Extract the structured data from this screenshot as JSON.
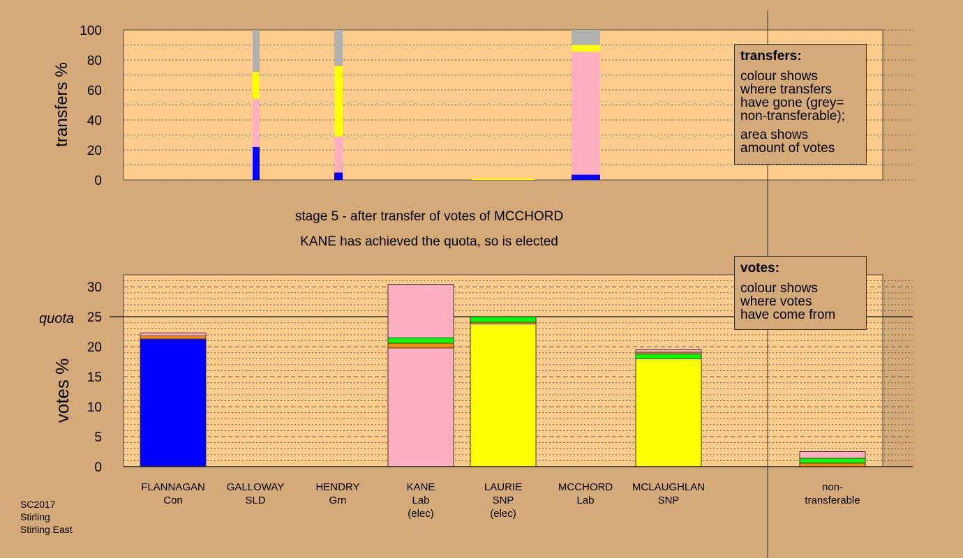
{
  "caption": {
    "stage": "stage 5 - after transfer of votes of MCCHORD",
    "result": "KANE has achieved the quota, so is elected"
  },
  "legend_transfers": {
    "title": "transfers:",
    "line1": "colour shows",
    "line2": "where transfers",
    "line3": "have gone (grey=",
    "line4": "non-transferable);",
    "line5": "area shows",
    "line6": "amount of votes"
  },
  "legend_votes": {
    "title": "votes:",
    "line1": "colour shows",
    "line2": "where votes",
    "line3": "have come from"
  },
  "footer": {
    "line1": "SC2017",
    "line2": "Stirling",
    "line3": "Stirling East"
  },
  "colors": {
    "background": "#d4aa78",
    "plot": "#ffcc8c",
    "Con": "#0000ff",
    "Lab": "#ffb0c0",
    "SNP": "#ffff00",
    "Grn": "#00ff00",
    "SLD": "#ff8c00",
    "nontransferable": "#b0b0b0"
  },
  "chart_data": [
    {
      "type": "bar",
      "ylabel": "transfers %",
      "ylim": [
        0,
        100
      ],
      "yticks": [
        0,
        20,
        40,
        60,
        80,
        100
      ],
      "grid": true,
      "bars": [
        {
          "candidate": "GALLOWAY",
          "segments": [
            {
              "color": "Con",
              "value": 22
            },
            {
              "color": "Lab",
              "value": 32
            },
            {
              "color": "SNP",
              "value": 18
            },
            {
              "color": "nontransferable",
              "value": 28
            }
          ]
        },
        {
          "candidate": "HENDRY",
          "segments": [
            {
              "color": "Con",
              "value": 5
            },
            {
              "color": "Lab",
              "value": 24
            },
            {
              "color": "SNP",
              "value": 47
            },
            {
              "color": "nontransferable",
              "value": 24
            }
          ]
        },
        {
          "candidate": "LAURIE",
          "segments": [
            {
              "color": "SNP",
              "value": 1
            }
          ]
        },
        {
          "candidate": "MCCHORD",
          "segments": [
            {
              "color": "Con",
              "value": 3.5
            },
            {
              "color": "Lab",
              "value": 82
            },
            {
              "color": "SNP",
              "value": 4.5
            },
            {
              "color": "nontransferable",
              "value": 10
            }
          ]
        }
      ]
    },
    {
      "type": "bar",
      "ylabel": "votes %",
      "quota_label": "quota",
      "quota": 25,
      "ylim": [
        0,
        32
      ],
      "yticks": [
        0,
        5,
        10,
        15,
        20,
        25,
        30
      ],
      "grid": true,
      "categories": [
        {
          "name": "FLANNAGAN",
          "party": "Con",
          "note": ""
        },
        {
          "name": "GALLOWAY",
          "party": "SLD",
          "note": ""
        },
        {
          "name": "HENDRY",
          "party": "Grn",
          "note": ""
        },
        {
          "name": "KANE",
          "party": "Lab",
          "note": "(elec)"
        },
        {
          "name": "LAURIE",
          "party": "SNP",
          "note": "(elec)"
        },
        {
          "name": "MCCHORD",
          "party": "Lab",
          "note": ""
        },
        {
          "name": "MCLAUGHLAN",
          "party": "SNP",
          "note": ""
        },
        {
          "name": "non-",
          "party": "transferable",
          "note": ""
        }
      ],
      "bars": [
        {
          "candidate": "FLANNAGAN",
          "segments": [
            {
              "color": "Con",
              "value": 21.3
            },
            {
              "color": "SLD",
              "value": 0.5
            },
            {
              "color": "Lab",
              "value": 0.5
            }
          ]
        },
        {
          "candidate": "GALLOWAY",
          "segments": []
        },
        {
          "candidate": "HENDRY",
          "segments": []
        },
        {
          "candidate": "KANE",
          "segments": [
            {
              "color": "Lab",
              "value": 19.8
            },
            {
              "color": "SLD",
              "value": 0.8
            },
            {
              "color": "Grn",
              "value": 0.9
            },
            {
              "color": "Lab",
              "value": 8.9
            }
          ]
        },
        {
          "candidate": "LAURIE",
          "segments": [
            {
              "color": "SNP",
              "value": 23.8
            },
            {
              "color": "SLD",
              "value": 0.3
            },
            {
              "color": "Grn",
              "value": 0.9
            }
          ]
        },
        {
          "candidate": "MCCHORD",
          "segments": []
        },
        {
          "candidate": "MCLAUGHLAN",
          "segments": [
            {
              "color": "SNP",
              "value": 18.0
            },
            {
              "color": "Grn",
              "value": 0.8
            },
            {
              "color": "SLD",
              "value": 0.3
            },
            {
              "color": "Lab",
              "value": 0.4
            }
          ]
        },
        {
          "candidate": "non-transferable",
          "segments": [
            {
              "color": "SLD",
              "value": 0.6
            },
            {
              "color": "Grn",
              "value": 0.8
            },
            {
              "color": "Lab",
              "value": 1.1
            }
          ]
        }
      ]
    }
  ]
}
